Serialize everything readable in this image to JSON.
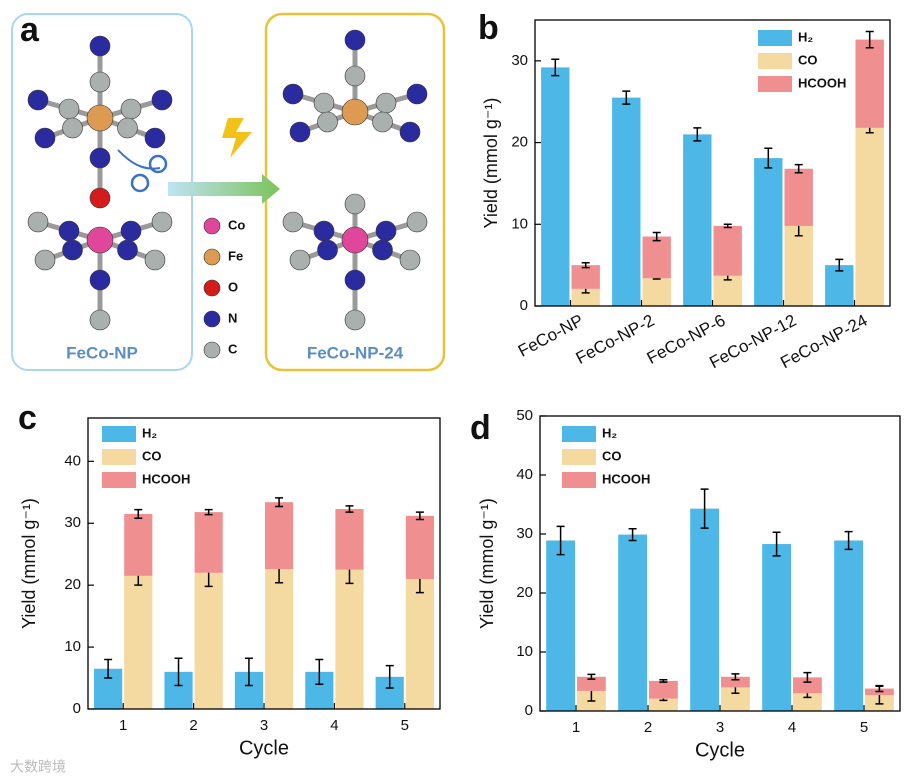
{
  "diagram": {
    "label": "a",
    "left_box": "FeCo-NP",
    "right_box": "FeCo-NP-24",
    "atoms": [
      {
        "name": "Co",
        "color": "#e0479a"
      },
      {
        "name": "Fe",
        "color": "#dc9a52"
      },
      {
        "name": "O",
        "color": "#d41c1c"
      },
      {
        "name": "N",
        "color": "#2b2ba0"
      },
      {
        "name": "C",
        "color": "#a9b0ae"
      }
    ]
  },
  "watermark": "大数跨境",
  "chart_data": [
    {
      "type": "bar",
      "label": "b",
      "ylabel": "Yield (mmol g⁻¹)",
      "categories": [
        "FeCo-NP",
        "FeCo-NP-2",
        "FeCo-NP-6",
        "FeCo-NP-12",
        "FeCo-NP-24"
      ],
      "series": [
        {
          "name": "H₂",
          "color": "#4db8e8",
          "values": [
            29.2,
            25.5,
            21.0,
            18.1,
            5.0
          ],
          "errors": [
            1.0,
            0.8,
            0.8,
            1.2,
            0.7
          ]
        },
        {
          "name": "CO",
          "color": "#f4d9a0",
          "values": [
            2.1,
            3.4,
            3.7,
            9.8,
            21.8
          ],
          "errors": [
            0.5,
            0.1,
            0.5,
            1.2,
            0.6
          ]
        },
        {
          "name": "HCOOH",
          "color": "#ef8f8f",
          "values": [
            2.9,
            5.1,
            6.1,
            7.0,
            10.8
          ],
          "errors": [
            0.3,
            0.5,
            0.2,
            0.5,
            1.0
          ]
        }
      ],
      "ylim": [
        0,
        35
      ],
      "yticks": [
        0,
        10,
        20,
        30
      ]
    },
    {
      "type": "bar",
      "label": "c",
      "xlabel": "Cycle",
      "ylabel": "Yield (mmol g⁻¹)",
      "categories": [
        "1",
        "2",
        "3",
        "4",
        "5"
      ],
      "series": [
        {
          "name": "H₂",
          "color": "#4db8e8",
          "values": [
            6.5,
            6.0,
            6.0,
            6.0,
            5.2
          ],
          "errors": [
            1.5,
            2.2,
            2.2,
            2.0,
            1.8
          ]
        },
        {
          "name": "CO",
          "color": "#f4d9a0",
          "values": [
            21.5,
            22.0,
            22.6,
            22.5,
            21.0
          ],
          "errors": [
            1.5,
            2.2,
            2.2,
            2.2,
            2.2
          ]
        },
        {
          "name": "HCOOH",
          "color": "#ef8f8f",
          "values": [
            10.0,
            9.8,
            10.8,
            9.8,
            10.2
          ],
          "errors": [
            0.7,
            0.4,
            0.7,
            0.5,
            0.6
          ]
        }
      ],
      "ylim": [
        0,
        47
      ],
      "yticks": [
        0,
        10,
        20,
        30,
        40
      ]
    },
    {
      "type": "bar",
      "label": "d",
      "xlabel": "Cycle",
      "ylabel": "Yield (mmol g⁻¹)",
      "categories": [
        "1",
        "2",
        "3",
        "4",
        "5"
      ],
      "series": [
        {
          "name": "H₂",
          "color": "#4db8e8",
          "values": [
            28.9,
            29.9,
            34.3,
            28.3,
            28.9
          ],
          "errors": [
            2.4,
            1.0,
            3.3,
            2.0,
            1.5
          ]
        },
        {
          "name": "CO",
          "color": "#f4d9a0",
          "values": [
            3.4,
            2.1,
            4.0,
            3.0,
            2.7
          ],
          "errors": [
            1.7,
            0.3,
            1.0,
            0.7,
            1.5
          ]
        },
        {
          "name": "HCOOH",
          "color": "#ef8f8f",
          "values": [
            2.4,
            3.0,
            1.8,
            2.7,
            1.1
          ],
          "errors": [
            0.4,
            0.2,
            0.5,
            0.8,
            0.5
          ]
        }
      ],
      "ylim": [
        0,
        50
      ],
      "yticks": [
        0,
        10,
        20,
        30,
        40,
        50
      ]
    }
  ]
}
